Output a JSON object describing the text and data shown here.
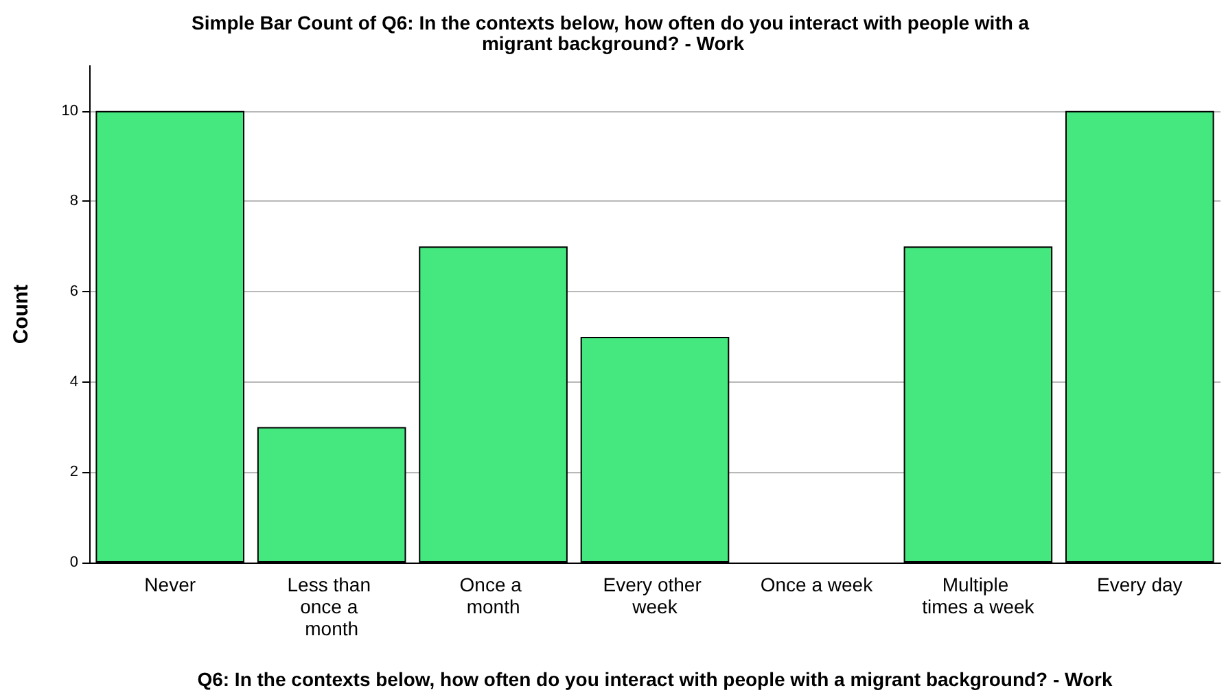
{
  "chart_data": {
    "type": "bar",
    "title": "Simple Bar Count of Q6: In the contexts below, how often do you interact with people with a migrant background? - Work",
    "xlabel": "Q6: In the contexts below, how often do you interact with people with a migrant background? - Work",
    "ylabel": "Count",
    "categories": [
      "Never",
      "Less than once a month",
      "Once a month",
      "Every other week",
      "Once a week",
      "Multiple times a week",
      "Every day"
    ],
    "values": [
      10,
      3,
      7,
      5,
      0,
      7,
      10
    ],
    "color": "#45e87f",
    "ylim": [
      0,
      11
    ],
    "yticks": [
      0,
      2,
      4,
      6,
      8,
      10
    ],
    "grid": "y"
  }
}
